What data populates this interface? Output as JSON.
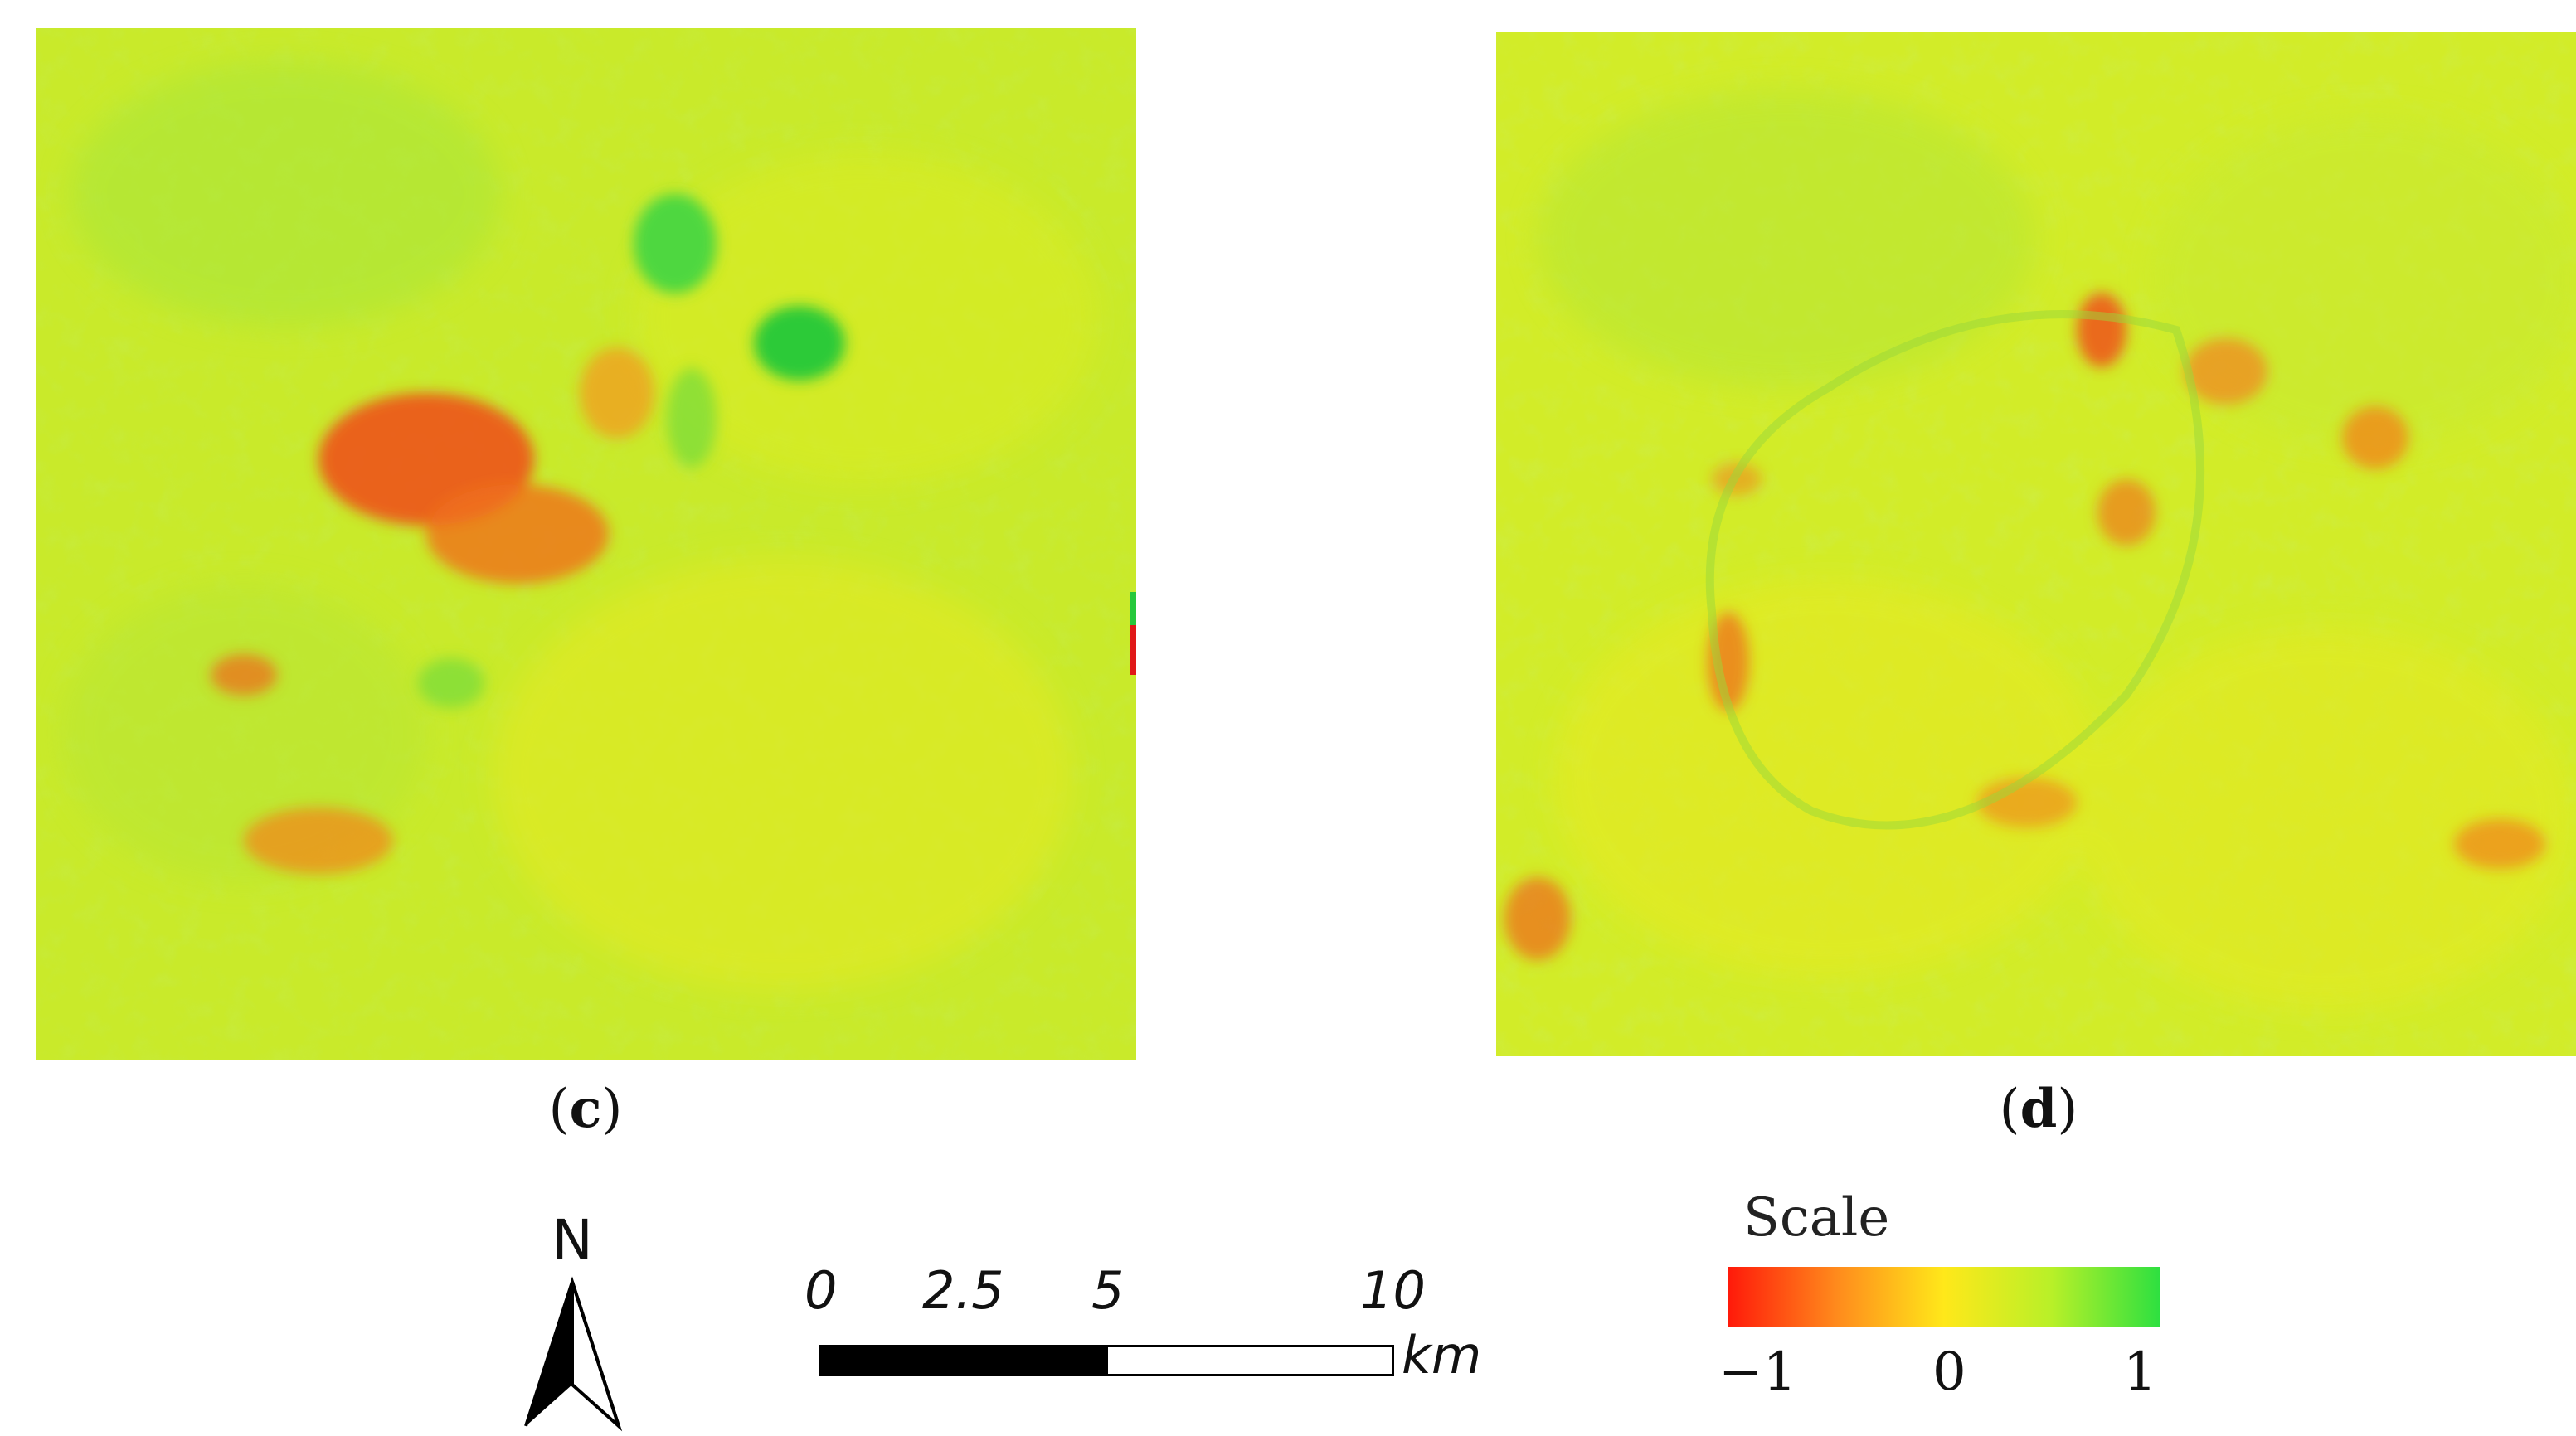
{
  "panels": [
    {
      "id": "c",
      "label": "c"
    },
    {
      "id": "d",
      "label": "d"
    }
  ],
  "north_arrow": {
    "letter": "N",
    "icon": "north-arrow-icon"
  },
  "scalebar": {
    "ticks": [
      "0",
      "2.5",
      "5",
      "10"
    ],
    "unit": "km"
  },
  "legend": {
    "title": "Scale",
    "min_label": "−1",
    "mid_label": "0",
    "max_label": "1",
    "colors": [
      "#ff1a0a",
      "#ff8a1c",
      "#ffe81a",
      "#b8f028",
      "#2ee040"
    ]
  }
}
